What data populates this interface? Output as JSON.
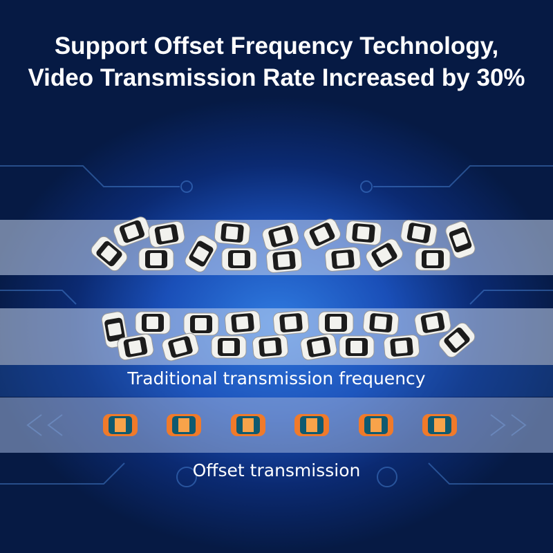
{
  "title_line1": "Support Offset Frequency Technology,",
  "title_line2": "Video Transmission Rate Increased by 30%",
  "traditional_label": "Traditional transmission frequency",
  "offset_label": "Offset transmission",
  "colors": {
    "background": "#0b2a72",
    "white_car": "#f2f2ee",
    "white_car_window": "#1c1c1c",
    "orange_car": "#f07a2a",
    "orange_car_window": "#0f5a70",
    "orange_car_roof": "#f8a34a"
  },
  "icons": [
    "white-car-icon",
    "orange-car-icon",
    "circuit-pattern"
  ]
}
